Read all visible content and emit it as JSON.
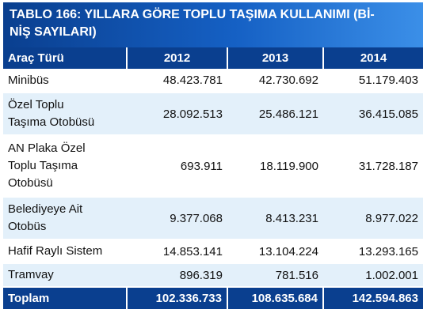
{
  "title_line1": "TABLO 166: YILLARA GÖRE TOPLU TAŞIMA KULLANIMI (Bİ-",
  "title_line2": "NİŞ SAYILARI)",
  "headers": [
    "Araç Türü",
    "2012",
    "2013",
    "2014"
  ],
  "rows": [
    {
      "label": [
        "Minibüs"
      ],
      "values": [
        "48.423.781",
        "42.730.692",
        "51.179.403"
      ]
    },
    {
      "label": [
        "Özel Toplu",
        "Taşıma Otobüsü"
      ],
      "values": [
        "28.092.513",
        "25.486.121",
        "36.415.085"
      ]
    },
    {
      "label": [
        "AN Plaka Özel",
        "Toplu Taşıma",
        "Otobüsü"
      ],
      "values": [
        "693.911",
        "18.119.900",
        "31.728.187"
      ]
    },
    {
      "label": [
        "Belediyeye Ait",
        "Otobüs"
      ],
      "values": [
        "9.377.068",
        "8.413.231",
        "8.977.022"
      ]
    },
    {
      "label": [
        "Hafif Raylı Sistem"
      ],
      "values": [
        "14.853.141",
        "13.104.224",
        "13.293.165"
      ]
    },
    {
      "label": [
        "Tramvay"
      ],
      "values": [
        "896.319",
        "781.516",
        "1.002.001"
      ]
    }
  ],
  "total": {
    "label": "Toplam",
    "values": [
      "102.336.733",
      "108.635.684",
      "142.594.863"
    ]
  },
  "colors": {
    "header": "#0a3f8f",
    "stripe": "#e3f0fa",
    "title_gradient_end": "#3b8fe8"
  }
}
